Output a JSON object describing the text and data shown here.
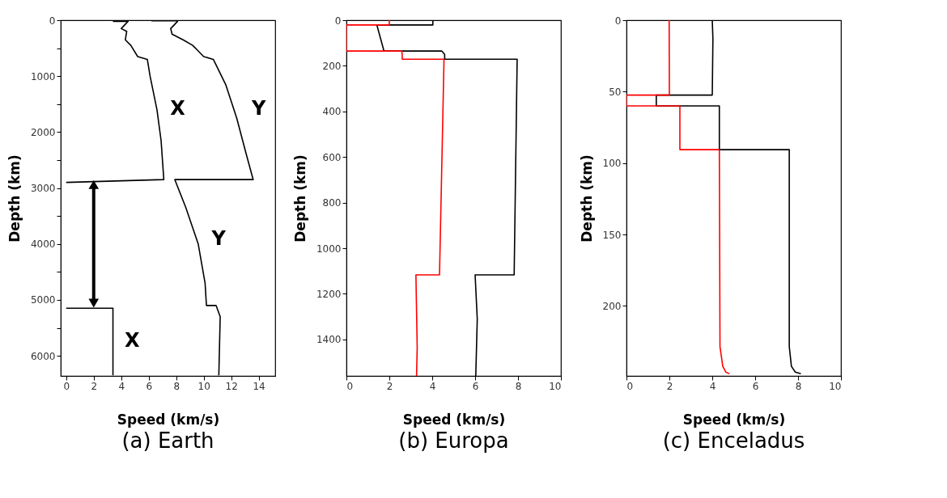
{
  "chart_data": [
    {
      "type": "line",
      "title": "(a) Earth",
      "xlabel": "Speed (km/s)",
      "ylabel": "Depth (km)",
      "xlim": [
        -0.4,
        15.2
      ],
      "ylim": [
        6360,
        0
      ],
      "xticks": [
        0,
        2,
        4,
        6,
        8,
        10,
        12,
        14
      ],
      "yticks": [
        0,
        {
          "value": 500,
          "label": null
        },
        1000,
        {
          "value": 1500,
          "label": null
        },
        2000,
        {
          "value": 2500,
          "label": null
        },
        3000,
        {
          "value": 3500,
          "label": null
        },
        4000,
        {
          "value": 4500,
          "label": null
        },
        5000,
        {
          "value": 5500,
          "label": null
        },
        6000
      ],
      "series": [
        {
          "color": "#000000",
          "x": [
            3.4,
            4.5,
            4.0,
            4.4,
            4.3,
            4.7,
            5.2,
            5.9,
            6.1,
            6.6,
            6.9,
            7.1,
            0
          ],
          "values": [
            20,
            20,
            150,
            200,
            350,
            450,
            650,
            700,
            1000,
            1600,
            2150,
            2850,
            2900
          ]
        },
        {
          "color": "#000000",
          "x": [
            0,
            3.4,
            3.4
          ],
          "values": [
            5150,
            5150,
            6350
          ]
        },
        {
          "color": "#000000",
          "x": [
            6.2,
            8.1,
            8.1,
            7.6,
            7.7,
            8.5,
            9.2,
            9.6,
            10.0,
            10.7,
            11.6,
            12.4,
            13.1,
            13.6,
            7.9,
            8.7,
            9.6,
            10.1,
            10.2,
            10.9,
            11.2,
            11.1
          ],
          "values": [
            10,
            10,
            20,
            150,
            250,
            350,
            450,
            550,
            650,
            700,
            1150,
            1750,
            2400,
            2850,
            2850,
            3350,
            4000,
            4700,
            5100,
            5100,
            5300,
            6350
          ]
        }
      ],
      "annotations": [
        "X",
        "Y",
        "Y",
        "X"
      ]
    },
    {
      "type": "line",
      "title": "(b) Europa",
      "xlabel": "Speed (km/s)",
      "ylabel": "Depth (km)",
      "xlim": [
        0,
        10
      ],
      "ylim": [
        1560,
        0
      ],
      "xticks": [
        0,
        2,
        4,
        6,
        8,
        10
      ],
      "yticks": [
        0,
        200,
        400,
        600,
        800,
        1000,
        1200,
        1400
      ],
      "series": [
        {
          "color": "#000000",
          "x": [
            4.03,
            4.03,
            1.42,
            1.75,
            4.44,
            4.58,
            4.58,
            7.96,
            7.82,
            6.0,
            6.1,
            6.03
          ],
          "values": [
            0,
            21,
            21,
            135,
            135,
            150,
            171,
            171,
            1117,
            1117,
            1310,
            1560
          ]
        },
        {
          "color": "#ff0000",
          "x": [
            2.0,
            2.0,
            0,
            0,
            2.58,
            2.6,
            2.6,
            4.55,
            4.34,
            3.24,
            3.3,
            3.27
          ],
          "values": [
            0,
            21,
            21,
            135,
            135,
            150,
            171,
            171,
            1117,
            1117,
            1435,
            1560
          ]
        }
      ]
    },
    {
      "type": "line",
      "title": "(c) Enceladus",
      "xlabel": "Speed (km/s)",
      "ylabel": "Depth (km)",
      "xlim": [
        0,
        10
      ],
      "ylim": [
        249,
        0
      ],
      "xticks": [
        0,
        2,
        4,
        6,
        8,
        10
      ],
      "yticks": [
        0,
        50,
        100,
        150,
        200
      ],
      "series": [
        {
          "color": "#000000",
          "x": [
            4.0,
            4.03,
            4.0,
            1.39,
            1.39,
            4.33,
            4.33,
            7.59,
            7.59,
            7.69,
            7.87,
            8.13
          ],
          "values": [
            0,
            12.9,
            52.4,
            52.4,
            60,
            60,
            90.6,
            90.6,
            228.5,
            242.3,
            246.3,
            247.5
          ]
        },
        {
          "color": "#ff0000",
          "x": [
            1.99,
            2.0,
            0,
            0,
            2.49,
            2.49,
            4.33,
            4.36,
            4.49,
            4.63,
            4.8
          ],
          "values": [
            0,
            52.4,
            52.4,
            60,
            60,
            90.6,
            90.6,
            228.5,
            242.3,
            246.3,
            247.5
          ]
        }
      ]
    }
  ]
}
